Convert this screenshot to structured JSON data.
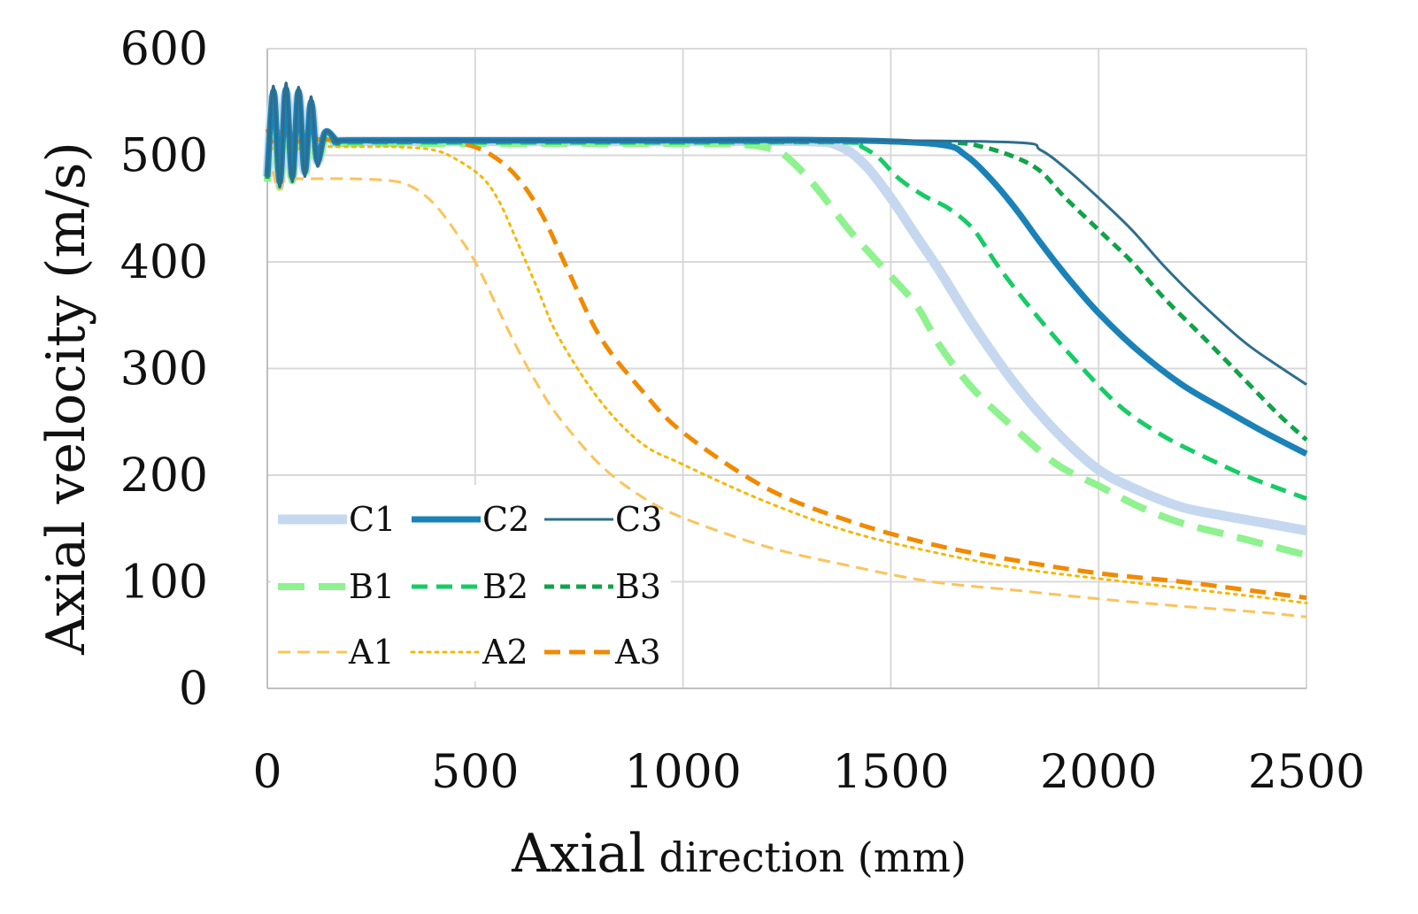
{
  "chart_data": {
    "type": "line",
    "title": "",
    "ylabel": "Axial velocity (m/s)",
    "xlabel": {
      "main": "Axial",
      "sub": "direction (mm)"
    },
    "xlim": [
      0,
      2500
    ],
    "ylim": [
      0,
      600
    ],
    "x_ticks": [
      "0",
      "500",
      "1000",
      "1500",
      "2000",
      "2500"
    ],
    "y_ticks": [
      "0",
      "100",
      "200",
      "300",
      "400",
      "500",
      "600"
    ],
    "grid": true,
    "legend_position": "bottom-left",
    "series": [
      {
        "name": "C1",
        "color": "#c5d8ef",
        "dash": "solid",
        "weight": "heavy",
        "points": [
          [
            0,
            480
          ],
          [
            15,
            555
          ],
          [
            30,
            475
          ],
          [
            45,
            558
          ],
          [
            60,
            480
          ],
          [
            75,
            556
          ],
          [
            90,
            485
          ],
          [
            105,
            545
          ],
          [
            120,
            495
          ],
          [
            140,
            520
          ],
          [
            170,
            512
          ],
          [
            200,
            513
          ],
          [
            600,
            513
          ],
          [
            1000,
            513
          ],
          [
            1300,
            513
          ],
          [
            1380,
            508
          ],
          [
            1440,
            490
          ],
          [
            1500,
            460
          ],
          [
            1560,
            425
          ],
          [
            1620,
            390
          ],
          [
            1700,
            340
          ],
          [
            1800,
            285
          ],
          [
            1900,
            240
          ],
          [
            2000,
            205
          ],
          [
            2100,
            185
          ],
          [
            2200,
            170
          ],
          [
            2300,
            162
          ],
          [
            2400,
            155
          ],
          [
            2500,
            148
          ]
        ]
      },
      {
        "name": "C2",
        "color": "#1b82b8",
        "dash": "solid",
        "weight": "heavy",
        "points": [
          [
            0,
            480
          ],
          [
            15,
            560
          ],
          [
            30,
            475
          ],
          [
            45,
            562
          ],
          [
            60,
            480
          ],
          [
            75,
            560
          ],
          [
            90,
            485
          ],
          [
            105,
            550
          ],
          [
            120,
            495
          ],
          [
            140,
            522
          ],
          [
            170,
            513
          ],
          [
            200,
            514
          ],
          [
            600,
            514
          ],
          [
            1000,
            514
          ],
          [
            1400,
            514
          ],
          [
            1620,
            510
          ],
          [
            1680,
            500
          ],
          [
            1740,
            478
          ],
          [
            1800,
            450
          ],
          [
            1860,
            418
          ],
          [
            1920,
            388
          ],
          [
            2000,
            352
          ],
          [
            2100,
            315
          ],
          [
            2200,
            285
          ],
          [
            2300,
            262
          ],
          [
            2400,
            240
          ],
          [
            2500,
            220
          ]
        ]
      },
      {
        "name": "C3",
        "color": "#2e6e8e",
        "dash": "solid",
        "weight": "thin",
        "points": [
          [
            0,
            480
          ],
          [
            15,
            565
          ],
          [
            30,
            470
          ],
          [
            45,
            568
          ],
          [
            60,
            475
          ],
          [
            75,
            564
          ],
          [
            90,
            480
          ],
          [
            105,
            555
          ],
          [
            120,
            490
          ],
          [
            140,
            522
          ],
          [
            170,
            513
          ],
          [
            200,
            514
          ],
          [
            600,
            514
          ],
          [
            1000,
            514
          ],
          [
            1400,
            514
          ],
          [
            1800,
            512
          ],
          [
            1860,
            505
          ],
          [
            1920,
            488
          ],
          [
            2000,
            460
          ],
          [
            2080,
            430
          ],
          [
            2160,
            395
          ],
          [
            2250,
            360
          ],
          [
            2350,
            325
          ],
          [
            2430,
            303
          ],
          [
            2500,
            285
          ]
        ]
      },
      {
        "name": "B1",
        "color": "#8ef28e",
        "dash": "long-dash",
        "weight": "heavy",
        "points": [
          [
            0,
            475
          ],
          [
            15,
            550
          ],
          [
            30,
            470
          ],
          [
            45,
            552
          ],
          [
            60,
            476
          ],
          [
            75,
            550
          ],
          [
            90,
            482
          ],
          [
            105,
            540
          ],
          [
            120,
            492
          ],
          [
            140,
            515
          ],
          [
            170,
            510
          ],
          [
            200,
            511
          ],
          [
            600,
            511
          ],
          [
            1000,
            511
          ],
          [
            1150,
            510
          ],
          [
            1220,
            505
          ],
          [
            1260,
            495
          ],
          [
            1320,
            470
          ],
          [
            1400,
            430
          ],
          [
            1480,
            395
          ],
          [
            1560,
            360
          ],
          [
            1620,
            320
          ],
          [
            1700,
            280
          ],
          [
            1800,
            243
          ],
          [
            1900,
            210
          ],
          [
            2000,
            190
          ],
          [
            2100,
            170
          ],
          [
            2200,
            155
          ],
          [
            2300,
            145
          ],
          [
            2400,
            135
          ],
          [
            2500,
            125
          ]
        ]
      },
      {
        "name": "B2",
        "color": "#16cc66",
        "dash": "dash",
        "weight": "medium",
        "points": [
          [
            0,
            478
          ],
          [
            15,
            553
          ],
          [
            30,
            472
          ],
          [
            45,
            555
          ],
          [
            60,
            478
          ],
          [
            75,
            552
          ],
          [
            90,
            483
          ],
          [
            105,
            542
          ],
          [
            120,
            493
          ],
          [
            140,
            517
          ],
          [
            170,
            511
          ],
          [
            200,
            512
          ],
          [
            600,
            512
          ],
          [
            1000,
            512
          ],
          [
            1400,
            512
          ],
          [
            1430,
            508
          ],
          [
            1470,
            498
          ],
          [
            1520,
            478
          ],
          [
            1580,
            462
          ],
          [
            1640,
            450
          ],
          [
            1700,
            430
          ],
          [
            1760,
            395
          ],
          [
            1850,
            350
          ],
          [
            1950,
            305
          ],
          [
            2050,
            265
          ],
          [
            2150,
            238
          ],
          [
            2250,
            218
          ],
          [
            2350,
            200
          ],
          [
            2430,
            188
          ],
          [
            2500,
            178
          ]
        ]
      },
      {
        "name": "B3",
        "color": "#11a349",
        "dash": "short-dash",
        "weight": "medium",
        "points": [
          [
            0,
            478
          ],
          [
            15,
            556
          ],
          [
            30,
            472
          ],
          [
            45,
            558
          ],
          [
            60,
            478
          ],
          [
            75,
            555
          ],
          [
            90,
            483
          ],
          [
            105,
            545
          ],
          [
            120,
            493
          ],
          [
            140,
            518
          ],
          [
            170,
            512
          ],
          [
            200,
            513
          ],
          [
            600,
            513
          ],
          [
            1000,
            513
          ],
          [
            1400,
            513
          ],
          [
            1640,
            512
          ],
          [
            1720,
            508
          ],
          [
            1800,
            498
          ],
          [
            1860,
            485
          ],
          [
            1920,
            460
          ],
          [
            2000,
            430
          ],
          [
            2080,
            400
          ],
          [
            2160,
            365
          ],
          [
            2250,
            330
          ],
          [
            2350,
            290
          ],
          [
            2430,
            258
          ],
          [
            2500,
            233
          ]
        ]
      },
      {
        "name": "A1",
        "color": "#fcc35a",
        "dash": "dash-thin",
        "weight": "thin",
        "points": [
          [
            0,
            478
          ],
          [
            10,
            490
          ],
          [
            25,
            468
          ],
          [
            45,
            478
          ],
          [
            80,
            478
          ],
          [
            200,
            478
          ],
          [
            300,
            476
          ],
          [
            350,
            470
          ],
          [
            400,
            455
          ],
          [
            450,
            430
          ],
          [
            500,
            400
          ],
          [
            550,
            360
          ],
          [
            600,
            320
          ],
          [
            650,
            285
          ],
          [
            700,
            255
          ],
          [
            800,
            210
          ],
          [
            900,
            180
          ],
          [
            1000,
            160
          ],
          [
            1200,
            133
          ],
          [
            1400,
            115
          ],
          [
            1600,
            100
          ],
          [
            1800,
            92
          ],
          [
            2000,
            84
          ],
          [
            2200,
            77
          ],
          [
            2400,
            71
          ],
          [
            2500,
            67
          ]
        ]
      },
      {
        "name": "A2",
        "color": "#f5b800",
        "dash": "dot",
        "weight": "thin",
        "points": [
          [
            0,
            515
          ],
          [
            15,
            505
          ],
          [
            30,
            510
          ],
          [
            60,
            505
          ],
          [
            100,
            508
          ],
          [
            200,
            508
          ],
          [
            300,
            508
          ],
          [
            400,
            505
          ],
          [
            460,
            495
          ],
          [
            520,
            478
          ],
          [
            560,
            455
          ],
          [
            600,
            420
          ],
          [
            650,
            375
          ],
          [
            700,
            330
          ],
          [
            800,
            270
          ],
          [
            900,
            230
          ],
          [
            1000,
            210
          ],
          [
            1200,
            175
          ],
          [
            1400,
            147
          ],
          [
            1600,
            128
          ],
          [
            1800,
            113
          ],
          [
            2000,
            103
          ],
          [
            2200,
            94
          ],
          [
            2400,
            85
          ],
          [
            2500,
            80
          ]
        ]
      },
      {
        "name": "A3",
        "color": "#f08a00",
        "dash": "dash",
        "weight": "medium",
        "points": [
          [
            0,
            525
          ],
          [
            15,
            510
          ],
          [
            30,
            522
          ],
          [
            60,
            512
          ],
          [
            100,
            515
          ],
          [
            200,
            514
          ],
          [
            300,
            514
          ],
          [
            400,
            514
          ],
          [
            480,
            510
          ],
          [
            540,
            500
          ],
          [
            600,
            480
          ],
          [
            660,
            445
          ],
          [
            720,
            395
          ],
          [
            800,
            330
          ],
          [
            900,
            280
          ],
          [
            1000,
            240
          ],
          [
            1200,
            188
          ],
          [
            1400,
            157
          ],
          [
            1600,
            135
          ],
          [
            1800,
            120
          ],
          [
            2000,
            108
          ],
          [
            2200,
            100
          ],
          [
            2400,
            90
          ],
          [
            2500,
            85
          ]
        ]
      }
    ]
  }
}
